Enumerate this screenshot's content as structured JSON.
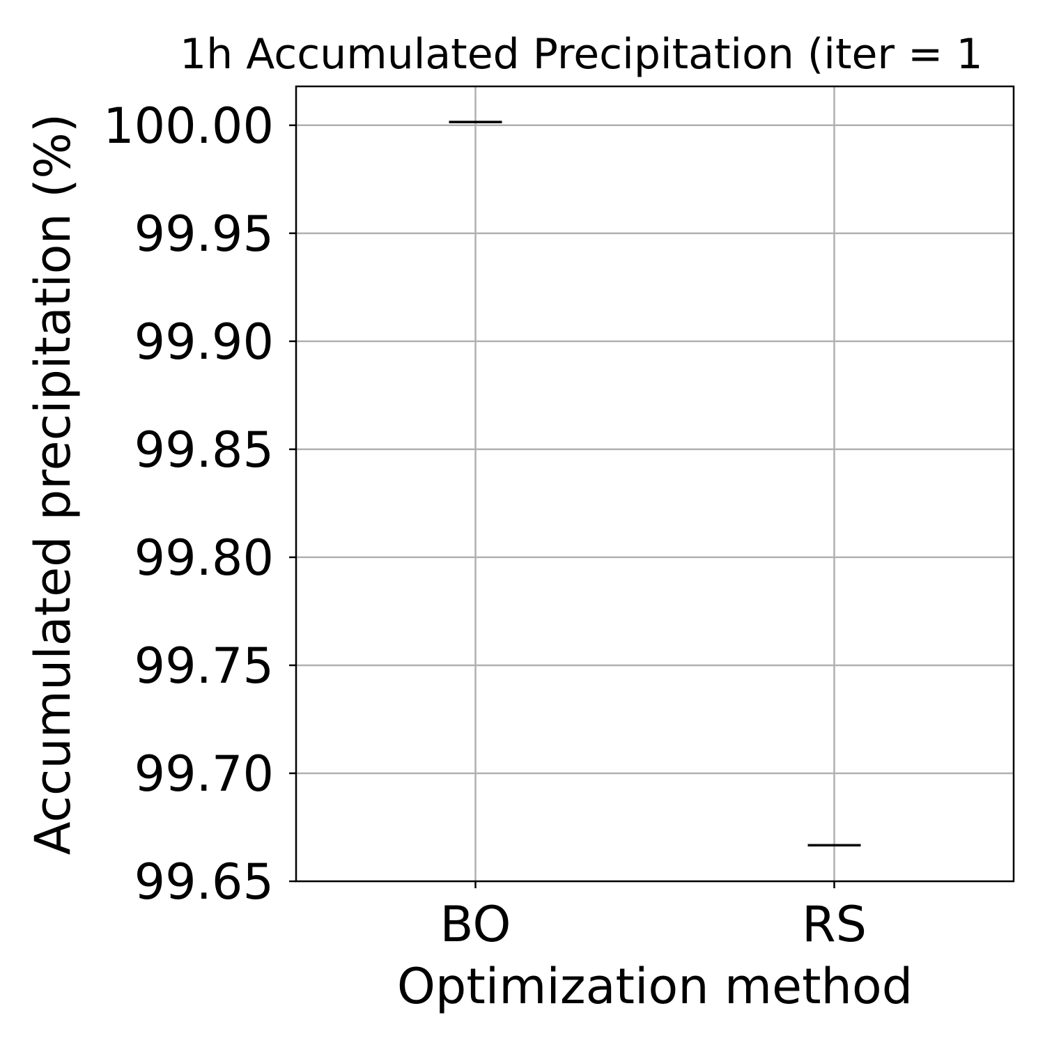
{
  "chart_data": {
    "type": "box",
    "title": "1h Accumulated Precipitation (iter = 1",
    "xlabel": "Optimization method",
    "ylabel": "Accumulated precipitation (%)",
    "categories": [
      "BO",
      "RS"
    ],
    "values": [
      100.0015,
      99.6667
    ],
    "ylim": [
      99.65,
      100.018
    ],
    "yticks": [
      99.65,
      99.7,
      99.75,
      99.8,
      99.85,
      99.9,
      99.95,
      100.0
    ],
    "ytick_labels": [
      "99.65",
      "99.70",
      "99.75",
      "99.80",
      "99.85",
      "99.90",
      "99.95",
      "100.00"
    ],
    "grid": true,
    "legend": "none",
    "colors": {
      "axes": "#000000",
      "grid": "#b0b0b0",
      "median_line": "#000000",
      "background": "#ffffff"
    }
  }
}
